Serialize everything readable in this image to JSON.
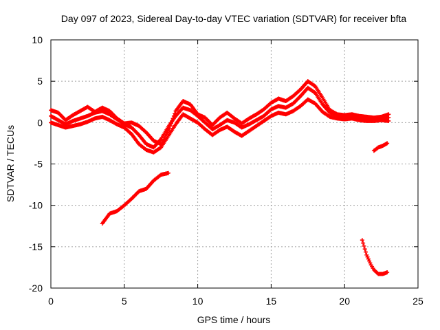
{
  "chart_data": {
    "type": "scatter",
    "title": "Day 097 of 2023, Sidereal Day-to-day VTEC variation (SDTVAR) for receiver bfta",
    "xlabel": "GPS time / hours",
    "ylabel": "SDTVAR / TECUs",
    "xlim": [
      0,
      25
    ],
    "ylim": [
      -20,
      10
    ],
    "xticks": [
      0,
      5,
      10,
      15,
      20,
      25
    ],
    "yticks": [
      -20,
      -15,
      -10,
      -5,
      0,
      5,
      10
    ],
    "grid": true,
    "marker": "+",
    "color": "#ff0000",
    "series": [
      {
        "name": "arc-main-1",
        "x": [
          0,
          0.5,
          1,
          1.5,
          2,
          2.5,
          3,
          3.5,
          4,
          4.5,
          5,
          5.5,
          6,
          6.5,
          7,
          7.5,
          8,
          8.5,
          9,
          9.5,
          10,
          10.5,
          11,
          11.5,
          12,
          12.5,
          13,
          13.5,
          14,
          14.5,
          15,
          15.5,
          16,
          16.5,
          17,
          17.5,
          18,
          18.5,
          19,
          19.5,
          20,
          20.5,
          21,
          21.5,
          22,
          22.5,
          23
        ],
        "y": [
          0.8,
          0.3,
          -0.2,
          0.2,
          0.5,
          0.8,
          1.2,
          1.4,
          1.0,
          0.4,
          -0.2,
          -0.6,
          -1.5,
          -2.6,
          -3.0,
          -2.0,
          -0.5,
          0.8,
          1.8,
          1.5,
          0.8,
          0.0,
          -0.8,
          -0.3,
          0.3,
          0.0,
          -0.6,
          -0.2,
          0.3,
          0.8,
          1.6,
          2.0,
          1.8,
          2.3,
          3.2,
          4.2,
          3.6,
          2.2,
          1.2,
          0.9,
          0.7,
          0.8,
          0.6,
          0.5,
          0.4,
          0.5,
          0.6
        ]
      },
      {
        "name": "arc-main-2",
        "x": [
          0,
          0.5,
          1,
          1.5,
          2,
          2.5,
          3,
          3.5,
          4,
          4.5,
          5,
          5.5,
          6,
          6.5,
          7,
          7.5,
          8,
          8.5,
          9,
          9.5,
          10,
          10.5,
          11,
          11.5,
          12,
          12.5,
          13,
          13.5,
          14,
          14.5,
          15,
          15.5,
          16,
          16.5,
          17,
          17.5,
          18,
          18.5,
          19,
          19.5,
          20,
          20.5,
          21,
          21.5,
          22,
          22.5,
          23
        ],
        "y": [
          0.0,
          -0.3,
          -0.6,
          -0.4,
          -0.2,
          0.1,
          0.5,
          0.7,
          0.3,
          -0.2,
          -0.6,
          -1.4,
          -2.6,
          -3.3,
          -3.6,
          -3.0,
          -1.6,
          -0.2,
          1.0,
          0.5,
          0.0,
          -0.8,
          -1.5,
          -0.9,
          -0.5,
          -1.1,
          -1.6,
          -1.0,
          -0.4,
          0.2,
          0.8,
          1.2,
          1.0,
          1.4,
          2.0,
          2.8,
          2.3,
          1.3,
          0.7,
          0.5,
          0.4,
          0.5,
          0.3,
          0.2,
          0.2,
          0.3,
          0.2
        ]
      },
      {
        "name": "arc-main-3",
        "x": [
          0,
          0.5,
          1,
          1.5,
          2,
          2.5,
          3,
          3.5,
          4,
          4.5,
          5,
          5.5,
          6,
          6.5,
          7,
          7.5,
          8,
          8.5,
          9,
          9.5,
          10,
          10.5,
          11,
          11.5,
          12,
          12.5,
          13,
          13.5,
          14,
          14.5,
          15,
          15.5,
          16,
          16.5,
          17,
          17.5,
          18,
          18.5,
          19,
          19.5,
          20,
          20.5,
          21,
          21.5,
          22,
          22.5,
          23
        ],
        "y": [
          1.5,
          1.2,
          0.3,
          0.9,
          1.4,
          1.9,
          1.3,
          1.8,
          1.4,
          0.5,
          -0.1,
          0.0,
          -0.4,
          -1.2,
          -2.2,
          -2.6,
          -1.0,
          1.4,
          2.6,
          2.2,
          1.0,
          0.6,
          -0.3,
          0.6,
          1.2,
          0.5,
          -0.1,
          0.5,
          1.0,
          1.6,
          2.4,
          2.9,
          2.6,
          3.2,
          4.0,
          5.0,
          4.4,
          3.0,
          1.5,
          1.0,
          0.9,
          1.0,
          0.8,
          0.7,
          0.6,
          0.7,
          1.0
        ]
      },
      {
        "name": "arc-low",
        "x": [
          3.5,
          4.0,
          4.5,
          5.0,
          5.5,
          6.0,
          6.5,
          7.0,
          7.5,
          8.0
        ],
        "y": [
          -12.2,
          -11.0,
          -10.7,
          -10.0,
          -9.2,
          -8.3,
          -8.0,
          -7.0,
          -6.3,
          -6.1
        ]
      },
      {
        "name": "arc-bottom-right",
        "x": [
          21.2,
          21.5,
          21.8,
          22.0,
          22.3,
          22.6,
          22.9
        ],
        "y": [
          -14.2,
          -16.0,
          -17.2,
          -17.8,
          -18.3,
          -18.3,
          -18.1
        ]
      },
      {
        "name": "arc-mid-right",
        "x": [
          22.0,
          22.3,
          22.6,
          22.9
        ],
        "y": [
          -3.4,
          -3.0,
          -2.8,
          -2.5
        ]
      }
    ]
  }
}
